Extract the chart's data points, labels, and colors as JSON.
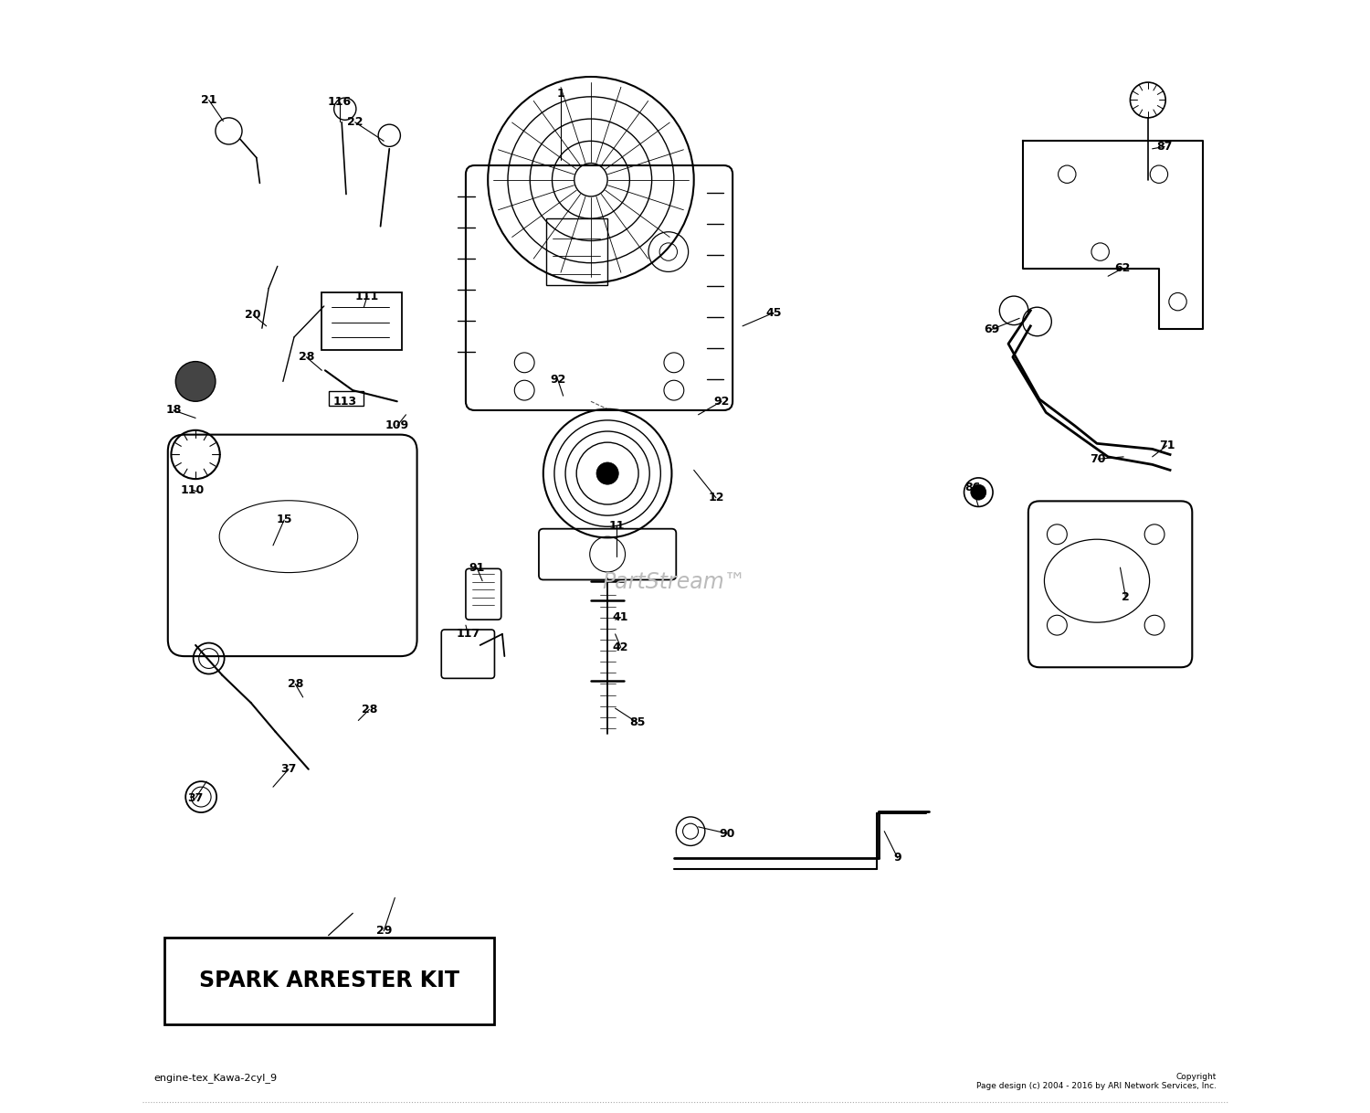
{
  "bg_color": "#ffffff",
  "footer_left": "engine-tex_Kawa-2cyl_9",
  "footer_right": "Copyright\nPage design (c) 2004 - 2016 by ARI Network Services, Inc.",
  "watermark": "PartStream™",
  "spark_arrester_label": "SPARK ARRESTER KIT"
}
